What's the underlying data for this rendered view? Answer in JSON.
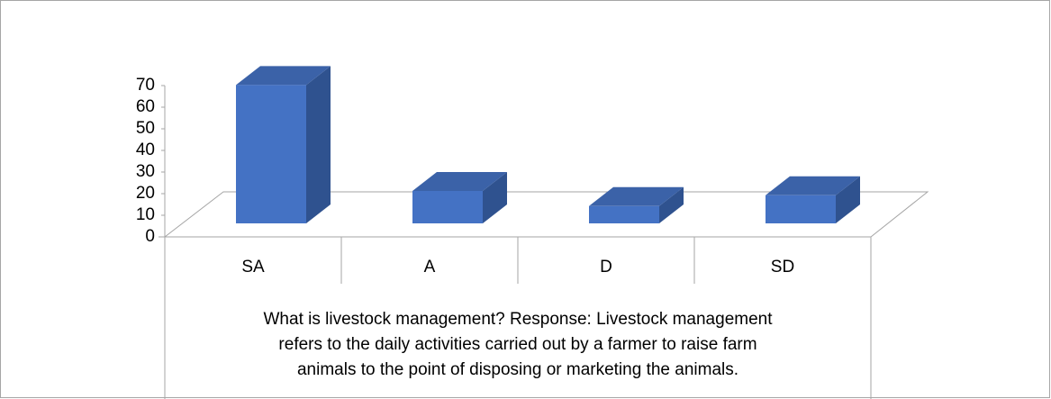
{
  "chart_data": {
    "type": "bar3d",
    "categories": [
      "SA",
      "A",
      "D",
      "SD"
    ],
    "values": [
      64,
      15,
      8,
      13
    ],
    "color": "#4472c4",
    "ylim": [
      0,
      70
    ],
    "yticks": [
      0,
      10,
      20,
      30,
      40,
      50,
      60,
      70
    ],
    "x_label_lines": [
      "What is livestock management? Response: Livestock management",
      "refers to the daily activities carried out by a farmer to raise farm",
      "animals to the point of disposing or marketing the animals."
    ]
  }
}
